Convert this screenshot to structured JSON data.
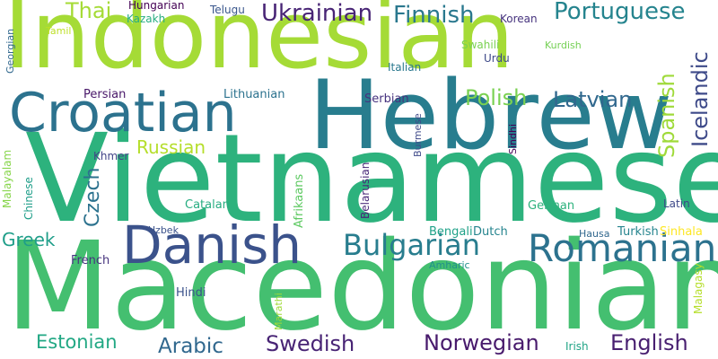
{
  "word_cloud": {
    "words": [
      {
        "id": "indonesian",
        "text": "Indonesian",
        "color": "#a5db36"
      },
      {
        "id": "vietnamese",
        "text": "Vietnamese",
        "color": "#2db27d"
      },
      {
        "id": "macedonian",
        "text": "Macedonian",
        "color": "#44bf70"
      },
      {
        "id": "hebrew",
        "text": "Hebrew",
        "color": "#287d8e"
      },
      {
        "id": "croatian",
        "text": "Croatian",
        "color": "#2c728e"
      },
      {
        "id": "danish",
        "text": "Danish",
        "color": "#3b528b"
      },
      {
        "id": "romanian",
        "text": "Romanian",
        "color": "#2c728e"
      },
      {
        "id": "bulgarian",
        "text": "Bulgarian",
        "color": "#287d8e"
      },
      {
        "id": "ukrainian",
        "text": "Ukrainian",
        "color": "#482475"
      },
      {
        "id": "finnish",
        "text": "Finnish",
        "color": "#2a788e"
      },
      {
        "id": "portuguese",
        "text": "Portuguese",
        "color": "#25848e"
      },
      {
        "id": "thai",
        "text": "Thai",
        "color": "#a5db36"
      },
      {
        "id": "hungarian",
        "text": "Hungarian",
        "color": "#440154"
      },
      {
        "id": "kazakh",
        "text": "Kazakh",
        "color": "#27ad81"
      },
      {
        "id": "telugu",
        "text": "Telugu",
        "color": "#39568c"
      },
      {
        "id": "korean",
        "text": "Korean",
        "color": "#46337e"
      },
      {
        "id": "tamil",
        "text": "Tamil",
        "color": "#bddf26"
      },
      {
        "id": "georgian",
        "text": "Georgian",
        "color": "#31688e"
      },
      {
        "id": "swahili",
        "text": "Swahili",
        "color": "#7ad151"
      },
      {
        "id": "kurdish",
        "text": "Kurdish",
        "color": "#75d054"
      },
      {
        "id": "urdu",
        "text": "Urdu",
        "color": "#3e4989"
      },
      {
        "id": "italian",
        "text": "Italian",
        "color": "#2a788e"
      },
      {
        "id": "icelandic",
        "text": "Icelandic",
        "color": "#3e4a89"
      },
      {
        "id": "spanish",
        "text": "Spanish",
        "color": "#9fda3a"
      },
      {
        "id": "polish",
        "text": "Polish",
        "color": "#7ad151"
      },
      {
        "id": "latvian",
        "text": "Latvian",
        "color": "#31688e"
      },
      {
        "id": "persian",
        "text": "Persian",
        "color": "#481769"
      },
      {
        "id": "lithuanian",
        "text": "Lithuanian",
        "color": "#2c728e"
      },
      {
        "id": "serbian",
        "text": "Serbian",
        "color": "#46327e"
      },
      {
        "id": "burmese",
        "text": "Burmese",
        "color": "#3e4989"
      },
      {
        "id": "sindhi",
        "text": "Sindhi",
        "color": "#440154"
      },
      {
        "id": "russian",
        "text": "Russian",
        "color": "#b5de2b"
      },
      {
        "id": "khmer",
        "text": "Khmer",
        "color": "#414487"
      },
      {
        "id": "czech",
        "text": "Czech",
        "color": "#2c728e"
      },
      {
        "id": "malayalam",
        "text": "Malayalam",
        "color": "#86d549"
      },
      {
        "id": "chinese",
        "text": "Chinese",
        "color": "#1f9e89"
      },
      {
        "id": "afrikaans",
        "text": "Afrikaans",
        "color": "#5ec962"
      },
      {
        "id": "belarusian",
        "text": "Belarusian",
        "color": "#482878"
      },
      {
        "id": "catalan",
        "text": "Catalan",
        "color": "#27ad81"
      },
      {
        "id": "german",
        "text": "German",
        "color": "#2db27d"
      },
      {
        "id": "latin",
        "text": "Latin",
        "color": "#3e4989"
      },
      {
        "id": "bengali",
        "text": "Bengali",
        "color": "#1fa188"
      },
      {
        "id": "dutch",
        "text": "Dutch",
        "color": "#25848e"
      },
      {
        "id": "greek",
        "text": "Greek",
        "color": "#1f9e89"
      },
      {
        "id": "uzbek",
        "text": "Uzbek",
        "color": "#3b528b"
      },
      {
        "id": "hausa",
        "text": "Hausa",
        "color": "#31688e"
      },
      {
        "id": "turkish",
        "text": "Turkish",
        "color": "#25848e"
      },
      {
        "id": "sinhala",
        "text": "Sinhala",
        "color": "#fde725"
      },
      {
        "id": "french",
        "text": "French",
        "color": "#46337e"
      },
      {
        "id": "amharic",
        "text": "Amharic",
        "color": "#21918c"
      },
      {
        "id": "malagasy",
        "text": "Malagasy",
        "color": "#b5de2b"
      },
      {
        "id": "marathi",
        "text": "Marathi",
        "color": "#a0da39"
      },
      {
        "id": "hindi",
        "text": "Hindi",
        "color": "#3b528b"
      },
      {
        "id": "estonian",
        "text": "Estonian",
        "color": "#22a884"
      },
      {
        "id": "arabic",
        "text": "Arabic",
        "color": "#31688e"
      },
      {
        "id": "swedish",
        "text": "Swedish",
        "color": "#482475"
      },
      {
        "id": "norwegian",
        "text": "Norwegian",
        "color": "#481a6c"
      },
      {
        "id": "english",
        "text": "English",
        "color": "#481f70"
      },
      {
        "id": "irish",
        "text": "Irish",
        "color": "#20a486"
      }
    ]
  }
}
